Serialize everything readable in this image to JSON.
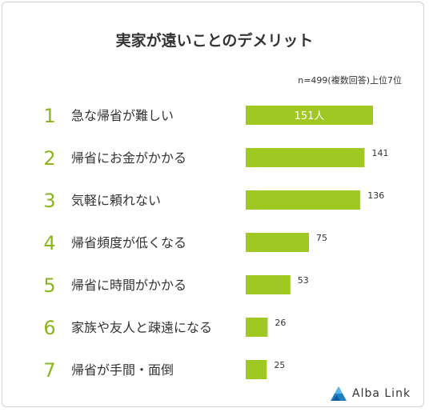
{
  "title": "実家が遠いことのデメリット",
  "note": "n=499(複数回答)上位7位",
  "colors": {
    "bar": "#a0c823",
    "rank": "#8ab51c",
    "text": "#333333"
  },
  "chart_data": {
    "type": "bar",
    "orientation": "horizontal",
    "title": "実家が遠いことのデメリット",
    "ranks": [
      "1",
      "2",
      "3",
      "4",
      "5",
      "6",
      "7"
    ],
    "categories": [
      "急な帰省が難しい",
      "帰省にお金がかかる",
      "気軽に頼れない",
      "帰省頻度が低くなる",
      "帰省に時間がかかる",
      "家族や友人と疎遠になる",
      "帰省が手間・面倒"
    ],
    "values": [
      151,
      141,
      136,
      75,
      53,
      26,
      25
    ],
    "labels": [
      "151人",
      "141",
      "136",
      "75",
      "53",
      "26",
      "25"
    ],
    "xlim": [
      0,
      151
    ]
  },
  "logo": {
    "text": "Alba Link",
    "icon": "alba-link-logo-icon"
  }
}
